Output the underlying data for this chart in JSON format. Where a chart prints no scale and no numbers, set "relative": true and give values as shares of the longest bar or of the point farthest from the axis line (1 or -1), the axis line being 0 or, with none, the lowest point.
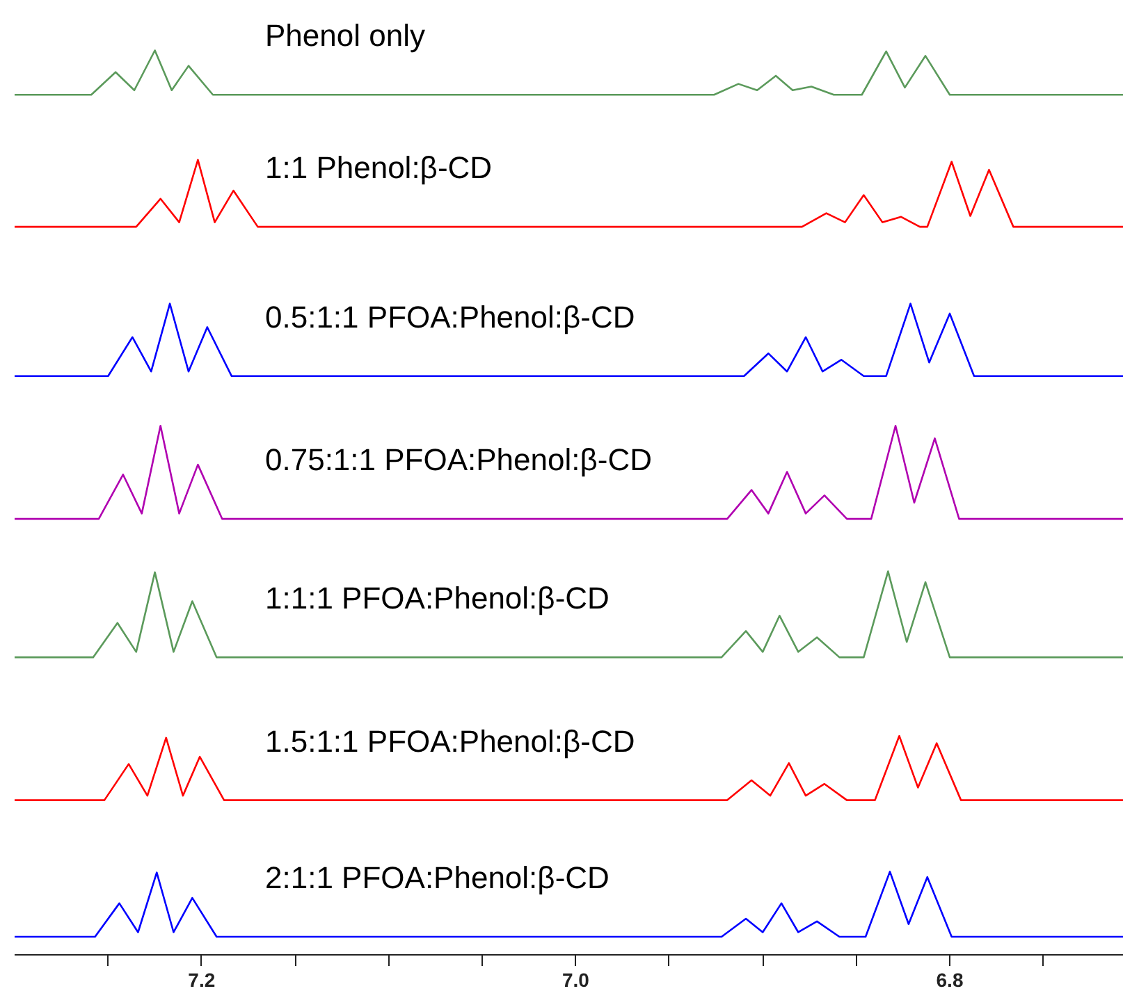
{
  "chart_data": {
    "type": "line",
    "relative": true,
    "xlim": [
      7.3,
      6.707
    ],
    "xticks": [
      {
        "value": 7.25,
        "label": null
      },
      7.2,
      {
        "value": 7.15,
        "label": null
      },
      {
        "value": 7.1,
        "label": null
      },
      {
        "value": 7.05,
        "label": null
      },
      {
        "value": 7,
        "label": "7.0"
      },
      {
        "value": 6.95,
        "label": null
      },
      {
        "value": 6.9,
        "label": null
      },
      {
        "value": 6.85,
        "label": null
      },
      6.8,
      {
        "value": 6.75,
        "label": null
      }
    ],
    "tick_labels": "x",
    "series": [
      {
        "name": "Phenol only",
        "color": "#5b9a5b",
        "x": [
          7.3,
          7.259,
          7.246,
          7.236,
          7.225,
          7.216,
          7.207,
          7.194,
          6.926,
          6.913,
          6.903,
          6.893,
          6.884,
          6.874,
          6.862,
          6.847,
          6.834,
          6.824,
          6.813,
          6.8,
          6.707
        ],
        "values": [
          0.951,
          0.951,
          0.976,
          0.956,
          1.0,
          0.956,
          0.983,
          0.951,
          0.951,
          0.963,
          0.956,
          0.972,
          0.956,
          0.96,
          0.951,
          0.951,
          0.999,
          0.959,
          0.994,
          0.951,
          0.951
        ]
      },
      {
        "name": "1:1 Phenol:β-CD",
        "color": "#ff0000",
        "x": [
          7.3,
          7.235,
          7.222,
          7.212,
          7.202,
          7.193,
          7.183,
          7.17,
          6.879,
          6.866,
          6.856,
          6.846,
          6.836,
          6.826,
          6.816,
          6.812,
          6.799,
          6.789,
          6.779,
          6.766,
          6.707
        ],
        "values": [
          0.805,
          0.805,
          0.836,
          0.81,
          0.879,
          0.81,
          0.845,
          0.805,
          0.805,
          0.82,
          0.81,
          0.84,
          0.81,
          0.816,
          0.805,
          0.805,
          0.877,
          0.817,
          0.868,
          0.805,
          0.805
        ]
      },
      {
        "name": "0.5:1:1 PFOA:Phenol:β-CD",
        "color": "#0000ff",
        "x": [
          7.3,
          7.25,
          7.237,
          7.227,
          7.217,
          7.207,
          7.197,
          7.184,
          6.91,
          6.897,
          6.887,
          6.877,
          6.868,
          6.858,
          6.846,
          6.834,
          6.821,
          6.811,
          6.8,
          6.787,
          6.707
        ],
        "values": [
          0.64,
          0.64,
          0.683,
          0.645,
          0.72,
          0.645,
          0.694,
          0.64,
          0.64,
          0.665,
          0.645,
          0.683,
          0.645,
          0.658,
          0.64,
          0.64,
          0.72,
          0.655,
          0.709,
          0.64,
          0.64
        ]
      },
      {
        "name": "0.75:1:1 PFOA:Phenol:β-CD",
        "color": "#b000b0",
        "x": [
          7.3,
          7.255,
          7.242,
          7.232,
          7.222,
          7.212,
          7.202,
          7.189,
          6.919,
          6.906,
          6.897,
          6.887,
          6.877,
          6.867,
          6.855,
          6.842,
          6.829,
          6.819,
          6.808,
          6.795,
          6.707
        ],
        "values": [
          0.482,
          0.482,
          0.531,
          0.488,
          0.585,
          0.488,
          0.542,
          0.482,
          0.482,
          0.514,
          0.488,
          0.534,
          0.488,
          0.508,
          0.482,
          0.482,
          0.585,
          0.5,
          0.571,
          0.482,
          0.482
        ]
      },
      {
        "name": "1:1:1 PFOA:Phenol:β-CD",
        "color": "#5b9a5b",
        "x": [
          7.3,
          7.258,
          7.245,
          7.235,
          7.225,
          7.215,
          7.205,
          7.192,
          6.922,
          6.909,
          6.9,
          6.891,
          6.881,
          6.871,
          6.859,
          6.846,
          6.833,
          6.823,
          6.813,
          6.8,
          6.707
        ],
        "values": [
          0.329,
          0.329,
          0.367,
          0.335,
          0.423,
          0.335,
          0.391,
          0.329,
          0.329,
          0.358,
          0.335,
          0.375,
          0.335,
          0.351,
          0.329,
          0.329,
          0.424,
          0.346,
          0.412,
          0.329,
          0.329
        ]
      },
      {
        "name": "1.5:1:1 PFOA:Phenol:β-CD",
        "color": "#ff0000",
        "x": [
          7.3,
          7.252,
          7.239,
          7.229,
          7.219,
          7.21,
          7.201,
          7.188,
          6.919,
          6.906,
          6.896,
          6.886,
          6.877,
          6.867,
          6.855,
          6.84,
          6.827,
          6.817,
          6.807,
          6.794,
          6.707
        ],
        "values": [
          0.171,
          0.171,
          0.211,
          0.176,
          0.24,
          0.176,
          0.219,
          0.171,
          0.171,
          0.193,
          0.176,
          0.212,
          0.176,
          0.189,
          0.171,
          0.171,
          0.242,
          0.185,
          0.234,
          0.171,
          0.171
        ]
      },
      {
        "name": "2:1:1 PFOA:Phenol:β-CD",
        "color": "#0000ff",
        "x": [
          7.3,
          7.257,
          7.244,
          7.234,
          7.224,
          7.215,
          7.205,
          7.192,
          6.922,
          6.909,
          6.9,
          6.89,
          6.881,
          6.871,
          6.859,
          6.845,
          6.832,
          6.822,
          6.812,
          6.799,
          6.707
        ],
        "values": [
          0.02,
          0.02,
          0.057,
          0.025,
          0.091,
          0.025,
          0.063,
          0.02,
          0.02,
          0.04,
          0.025,
          0.057,
          0.025,
          0.037,
          0.02,
          0.02,
          0.092,
          0.034,
          0.086,
          0.02,
          0.02
        ]
      }
    ]
  }
}
